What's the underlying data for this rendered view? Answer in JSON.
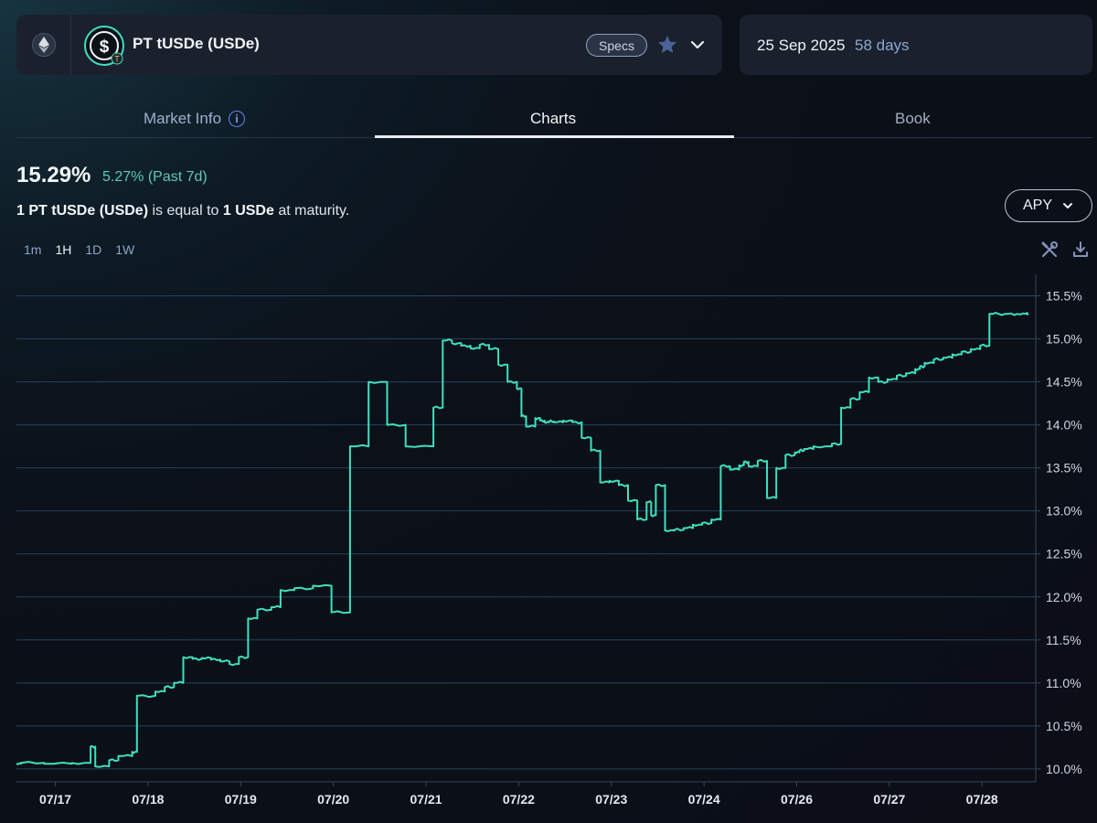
{
  "header": {
    "chain_icon": "ethereum-icon",
    "token_icon": "usde-dollar-icon",
    "market_name": "PT tUSDe (USDe)",
    "specs_label": "Specs",
    "favorite_icon": "star-icon",
    "expand_icon": "chevron-down-icon",
    "maturity_date": "25 Sep 2025",
    "days_left": "58 days"
  },
  "tabs": [
    {
      "label": "Market Info",
      "icon": "info-icon"
    },
    {
      "label": "Charts",
      "active": true
    },
    {
      "label": "Book"
    }
  ],
  "summary": {
    "current_apy": "15.29%",
    "change": "5.27% (Past 7d)",
    "maturity_pre": "1 PT tUSDe (USDe)",
    "maturity_mid": " is equal to ",
    "maturity_amount": "1 USDe",
    "maturity_post": " at maturity."
  },
  "metric_selector": {
    "label": "APY",
    "icon": "chevron-down-icon"
  },
  "intervals": [
    {
      "label": "1m",
      "active": false
    },
    {
      "label": "1H",
      "active": true
    },
    {
      "label": "1D",
      "active": false
    },
    {
      "label": "1W",
      "active": false
    }
  ],
  "tools": {
    "settings_icon": "tools-icon",
    "download_icon": "download-icon"
  },
  "colors": {
    "accent": "#3ee0bd",
    "positive": "#5fc9b1",
    "days": "#8ea6d2",
    "card": "#1a212d"
  },
  "chart_data": {
    "type": "line",
    "x_tick_labels": [
      "07/17",
      "07/18",
      "07/19",
      "07/20",
      "07/21",
      "07/22",
      "07/23",
      "07/24",
      "07/26",
      "07/27",
      "07/28"
    ],
    "y_tick_labels": [
      "10.0%",
      "10.5%",
      "11.0%",
      "11.5%",
      "12.0%",
      "12.5%",
      "13.0%",
      "13.5%",
      "14.0%",
      "14.5%",
      "15.0%",
      "15.5%"
    ],
    "ylim": [
      9.85,
      15.75
    ],
    "xlim": [
      0,
      11
    ],
    "grid": "horizontal",
    "step": true,
    "series": [
      {
        "color": "#3ee0bd",
        "x": [
          0.0,
          0.05,
          0.3,
          0.6,
          0.8,
          0.85,
          1.0,
          1.1,
          1.25,
          1.3,
          1.5,
          1.6,
          1.7,
          1.8,
          1.9,
          2.0,
          2.1,
          2.2,
          2.3,
          2.4,
          2.5,
          2.6,
          2.75,
          2.85,
          3.0,
          3.2,
          3.4,
          3.6,
          3.8,
          4.0,
          4.2,
          4.5,
          4.6,
          4.7,
          4.8,
          4.9,
          5.0,
          5.1,
          5.2,
          5.3,
          5.4,
          5.45,
          5.5,
          5.6,
          5.65,
          5.7,
          5.75,
          5.8,
          5.9,
          6.0,
          6.1,
          6.2,
          6.3,
          6.4,
          6.5,
          6.6,
          6.7,
          6.8,
          6.85,
          6.9,
          7.0,
          7.1,
          7.2,
          7.3,
          7.4,
          7.5,
          7.6,
          7.7,
          7.8,
          7.85,
          7.9,
          8.0,
          8.1,
          8.2,
          8.3,
          8.4,
          8.45,
          8.5,
          8.6,
          8.8,
          8.9,
          9.0,
          9.1,
          9.2,
          9.3,
          9.4,
          9.5,
          9.6,
          9.7,
          9.75,
          9.8,
          9.9,
          10.0,
          10.1,
          10.2,
          10.3,
          10.4,
          10.5,
          10.6,
          10.7,
          10.8,
          10.9,
          10.92
        ],
        "values": [
          10.06,
          10.07,
          10.06,
          10.07,
          10.26,
          10.03,
          10.1,
          10.15,
          10.2,
          10.85,
          10.9,
          10.95,
          11.0,
          11.3,
          11.28,
          11.29,
          11.27,
          11.25,
          11.22,
          11.3,
          11.75,
          11.85,
          11.88,
          12.08,
          12.1,
          12.13,
          11.82,
          13.75,
          14.5,
          14.0,
          13.75,
          14.2,
          14.98,
          14.95,
          14.92,
          14.89,
          14.93,
          14.88,
          14.7,
          14.5,
          14.42,
          14.1,
          13.98,
          14.08,
          14.05,
          14.03,
          14.04,
          14.03,
          14.05,
          14.03,
          13.85,
          13.7,
          13.33,
          13.35,
          13.3,
          13.12,
          12.9,
          13.1,
          12.95,
          13.3,
          12.77,
          12.78,
          12.8,
          12.84,
          12.86,
          12.9,
          13.52,
          13.48,
          13.53,
          13.57,
          13.52,
          13.58,
          13.15,
          13.5,
          13.65,
          13.68,
          13.7,
          13.72,
          13.75,
          13.78,
          14.2,
          14.3,
          14.38,
          14.55,
          14.5,
          14.53,
          14.57,
          14.6,
          14.65,
          14.68,
          14.72,
          14.76,
          14.78,
          14.82,
          14.85,
          14.88,
          14.92,
          15.29,
          15.29,
          15.29,
          15.29,
          15.29,
          15.29
        ]
      }
    ]
  }
}
